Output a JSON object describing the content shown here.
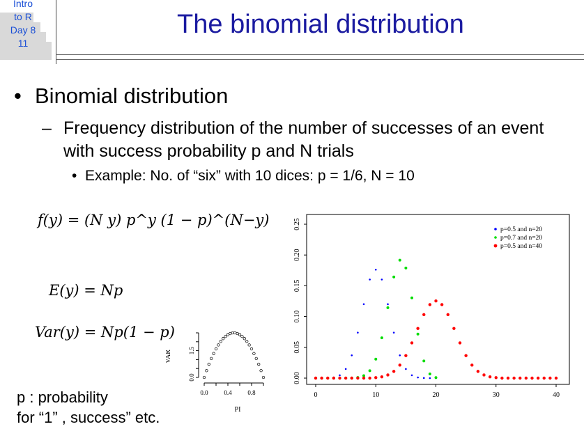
{
  "badge": {
    "lines": [
      "Intro",
      "to R",
      "Day 8",
      "11"
    ]
  },
  "title": "The binomial distribution",
  "bullets": {
    "level1": "Binomial distribution",
    "level2": "Frequency distribution of the number of successes of an event with success probability p and N trials",
    "level3": "Example: No. of “six” with 10 dices:  p = 1/6,  N = 10"
  },
  "formulas": {
    "pmf": "f(y) = (N y) p^y (1 − p)^(N−y)",
    "mean": "E(y) = Np",
    "variance": "Var(y) = Np(1 − p)"
  },
  "note": {
    "line1": "p : probability",
    "line2": "for “1” , success” etc."
  },
  "chart_data": [
    {
      "type": "scatter",
      "x_label": "PI",
      "y_label": "VAR",
      "x_ticks": [
        "0.0",
        "0.4",
        "0.8"
      ],
      "y_ticks": [
        "0.0",
        "1.5"
      ],
      "xlim": [
        0,
        1
      ],
      "ylim": [
        0,
        2.5
      ],
      "function": "VAR = 10 * PI * (1 - PI)",
      "x": [
        0.0,
        0.04,
        0.08,
        0.12,
        0.16,
        0.2,
        0.24,
        0.28,
        0.32,
        0.36,
        0.4,
        0.44,
        0.48,
        0.52,
        0.56,
        0.6,
        0.64,
        0.68,
        0.72,
        0.76,
        0.8,
        0.84,
        0.88,
        0.92,
        0.96,
        1.0
      ],
      "y": [
        0.0,
        0.38,
        0.74,
        1.06,
        1.34,
        1.6,
        1.82,
        2.02,
        2.18,
        2.3,
        2.4,
        2.46,
        2.5,
        2.5,
        2.46,
        2.4,
        2.3,
        2.18,
        2.02,
        1.82,
        1.6,
        1.34,
        1.06,
        0.74,
        0.38,
        0.0
      ]
    },
    {
      "type": "scatter",
      "x_ticks": [
        "0",
        "10",
        "20",
        "30",
        "40"
      ],
      "y_ticks": [
        "0.00",
        "0.05",
        "0.10",
        "0.15",
        "0.20",
        "0.25"
      ],
      "xlim": [
        0,
        40
      ],
      "ylim": [
        0,
        0.25
      ],
      "legend_position": "top-right",
      "series": [
        {
          "name": "p=0.5 and n=20",
          "color": "#0000ff",
          "x": [
            0,
            1,
            2,
            3,
            4,
            5,
            6,
            7,
            8,
            9,
            10,
            11,
            12,
            13,
            14,
            15,
            16,
            17,
            18,
            19,
            20
          ],
          "y": [
            0.0,
            0.0,
            0.0002,
            0.0011,
            0.0046,
            0.0148,
            0.037,
            0.0739,
            0.1201,
            0.1602,
            0.1762,
            0.1602,
            0.1201,
            0.0739,
            0.037,
            0.0148,
            0.0046,
            0.0011,
            0.0002,
            0.0,
            0.0
          ]
        },
        {
          "name": "p=0.7 and n=20",
          "color": "#00dd00",
          "x": [
            0,
            1,
            2,
            3,
            4,
            5,
            6,
            7,
            8,
            9,
            10,
            11,
            12,
            13,
            14,
            15,
            16,
            17,
            18,
            19,
            20
          ],
          "y": [
            0.0,
            0.0,
            0.0,
            0.0,
            0.0,
            0.0,
            0.0002,
            0.001,
            0.0039,
            0.012,
            0.0308,
            0.0654,
            0.1144,
            0.1643,
            0.1916,
            0.1789,
            0.1304,
            0.0716,
            0.0278,
            0.0068,
            0.0008
          ]
        },
        {
          "name": "p=0.5 and n=40",
          "color": "#ff0000",
          "x": [
            0,
            1,
            2,
            3,
            4,
            5,
            6,
            7,
            8,
            9,
            10,
            11,
            12,
            13,
            14,
            15,
            16,
            17,
            18,
            19,
            20,
            21,
            22,
            23,
            24,
            25,
            26,
            27,
            28,
            29,
            30,
            31,
            32,
            33,
            34,
            35,
            36,
            37,
            38,
            39,
            40
          ],
          "y": [
            0.0,
            0.0,
            0.0,
            0.0,
            0.0,
            0.0,
            0.0,
            0.0,
            0.0,
            0.0,
            0.0008,
            0.0021,
            0.0051,
            0.0109,
            0.0211,
            0.0366,
            0.0572,
            0.0807,
            0.1031,
            0.1194,
            0.1254,
            0.1194,
            0.1031,
            0.0807,
            0.0572,
            0.0366,
            0.0211,
            0.0109,
            0.0051,
            0.0021,
            0.0008,
            0.0,
            0.0,
            0.0,
            0.0,
            0.0,
            0.0,
            0.0,
            0.0,
            0.0,
            0.0
          ]
        }
      ]
    }
  ]
}
